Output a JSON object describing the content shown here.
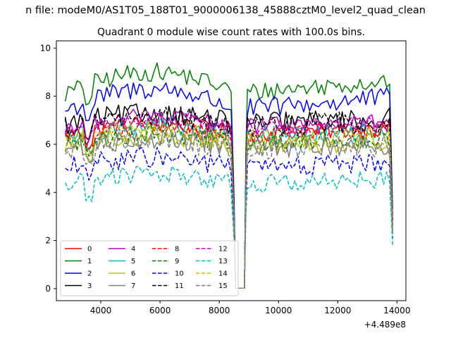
{
  "chart_data": {
    "type": "line",
    "title": "Quadrant 0 module wise count rates with 100.0s bins.",
    "suptitle": "n file: modeM0/AS1T05_188T01_9000006138_45888cztM0_level2_quad_clean",
    "xlabel": "",
    "ylabel": "",
    "x_offset_label": "+4.489e8",
    "xlim": [
      2500,
      14300
    ],
    "ylim": [
      -0.5,
      10.3
    ],
    "xticks": [
      4000,
      6000,
      8000,
      10000,
      12000,
      14000
    ],
    "yticks": [
      0,
      2,
      4,
      6,
      8,
      10
    ],
    "xtick_labels": [
      "4000",
      "6000",
      "8000",
      "10000",
      "12000",
      "14000"
    ],
    "ytick_labels": [
      "0",
      "2",
      "4",
      "6",
      "8",
      "10"
    ],
    "grid": false,
    "legend": {
      "placement": "lower-left",
      "columns": 4
    },
    "segments": {
      "first": {
        "x_start": 2800,
        "x_end": 8400,
        "drop_x": 8550
      },
      "gap": {
        "x_start": 8550,
        "x_end": 8900,
        "value": 0.02
      },
      "second": {
        "x_start": 8900,
        "x_end": 13800
      },
      "end_drop_x": 13850
    },
    "series": [
      {
        "name": "0",
        "color": "#ff0000",
        "dash": "solid",
        "level": 6.6
      },
      {
        "name": "1",
        "color": "#008000",
        "dash": "solid",
        "level": 8.3
      },
      {
        "name": "2",
        "color": "#0000ff",
        "dash": "solid",
        "level": 7.6
      },
      {
        "name": "3",
        "color": "#000000",
        "dash": "solid",
        "level": 7.0
      },
      {
        "name": "4",
        "color": "#bf00bf",
        "dash": "solid",
        "level": 6.9
      },
      {
        "name": "5",
        "color": "#00bfbf",
        "dash": "solid",
        "level": 6.5
      },
      {
        "name": "6",
        "color": "#bfbf00",
        "dash": "solid",
        "level": 6.1
      },
      {
        "name": "7",
        "color": "#808080",
        "dash": "solid",
        "level": 6.0
      },
      {
        "name": "8",
        "color": "#ff0000",
        "dash": "dashed",
        "level": 6.5
      },
      {
        "name": "9",
        "color": "#008000",
        "dash": "dashed",
        "level": 6.2
      },
      {
        "name": "10",
        "color": "#0000ff",
        "dash": "dashed",
        "level": 5.2
      },
      {
        "name": "11",
        "color": "#000000",
        "dash": "dashed",
        "level": 6.9
      },
      {
        "name": "12",
        "color": "#bf00bf",
        "dash": "dashed",
        "level": 6.8
      },
      {
        "name": "13",
        "color": "#00bfbf",
        "dash": "dashed",
        "level": 4.5
      },
      {
        "name": "14",
        "color": "#bfbf00",
        "dash": "dashed",
        "level": 6.3
      },
      {
        "name": "15",
        "color": "#808080",
        "dash": "dashed",
        "level": 5.9
      }
    ]
  }
}
